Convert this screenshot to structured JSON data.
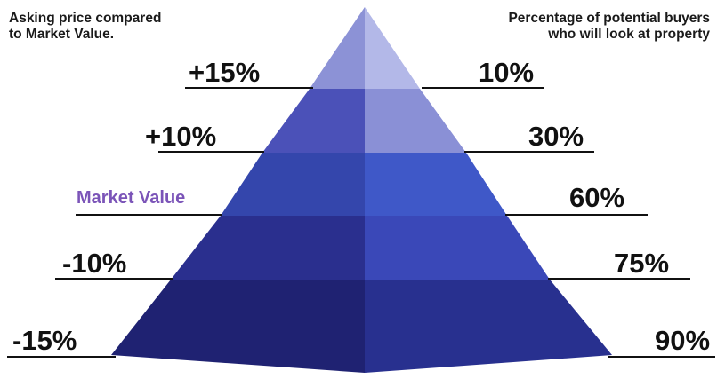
{
  "header": {
    "left_line1": "Asking price compared",
    "left_line2": "to Market Value.",
    "right_line1": "Percentage of potential buyers",
    "right_line2": "who will look at property"
  },
  "tiers": [
    {
      "price": "+15%",
      "buyers": "10%"
    },
    {
      "price": "+10%",
      "buyers": "30%"
    },
    {
      "price": "Market Value",
      "buyers": "60%"
    },
    {
      "price": "-10%",
      "buyers": "75%"
    },
    {
      "price": "-15%",
      "buyers": "90%"
    }
  ],
  "colors": {
    "market_value_text": "#7b54b8",
    "tier1_left": "#8c92d6",
    "tier1_right": "#b3b8e8",
    "tier2_left": "#4b51b8",
    "tier2_right": "#8a90d6",
    "tier3_left": "#3446ac",
    "tier3_right": "#3f58c8",
    "tier4_left": "#2a2f8e",
    "tier4_right": "#3a48b8",
    "tier5_left": "#1f2272",
    "tier5_right": "#28308f",
    "rule_line": "#111111"
  }
}
